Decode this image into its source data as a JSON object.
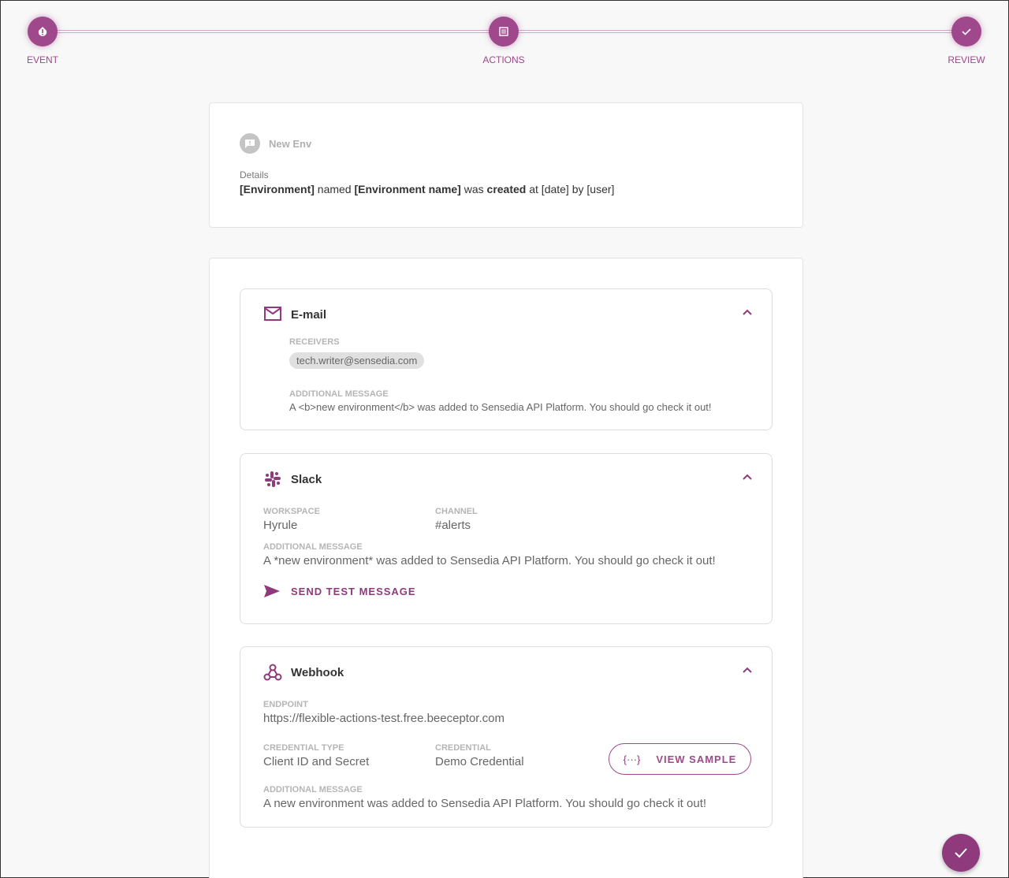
{
  "stepper": {
    "steps": [
      {
        "label": "EVENT",
        "icon": "alert-icon"
      },
      {
        "label": "ACTIONS",
        "icon": "list-icon"
      },
      {
        "label": "REVIEW",
        "icon": "check-icon"
      }
    ],
    "accent": "#a0488c"
  },
  "event": {
    "name": "New Env",
    "details_label": "Details",
    "details": {
      "p1": "[Environment]",
      "p2": " named ",
      "p3": "[Environment name]",
      "p4": " was ",
      "p5": "created",
      "p6": " at [date] by [user]"
    }
  },
  "email": {
    "title": "E-mail",
    "receivers_label": "RECEIVERS",
    "receiver": "tech.writer@sensedia.com",
    "message_label": "ADDITIONAL MESSAGE",
    "message": "A <b>new environment</b> was added to Sensedia API Platform. You should go check it out!"
  },
  "slack": {
    "title": "Slack",
    "workspace_label": "WORKSPACE",
    "workspace": "Hyrule",
    "channel_label": "CHANNEL",
    "channel": "#alerts",
    "message_label": "ADDITIONAL MESSAGE",
    "message": "A *new environment* was added to Sensedia API Platform. You should go check it out!",
    "send_test": "SEND TEST MESSAGE"
  },
  "webhook": {
    "title": "Webhook",
    "endpoint_label": "ENDPOINT",
    "endpoint": "https://flexible-actions-test.free.beeceptor.com",
    "cred_type_label": "CREDENTIAL TYPE",
    "cred_type": "Client ID and Secret",
    "cred_label": "CREDENTIAL",
    "cred": "Demo Credential",
    "view_sample": "VIEW SAMPLE",
    "view_sample_icon": "{···}",
    "message_label": "ADDITIONAL MESSAGE",
    "message": "A new environment was added to Sensedia API Platform. You should go check it out!"
  }
}
